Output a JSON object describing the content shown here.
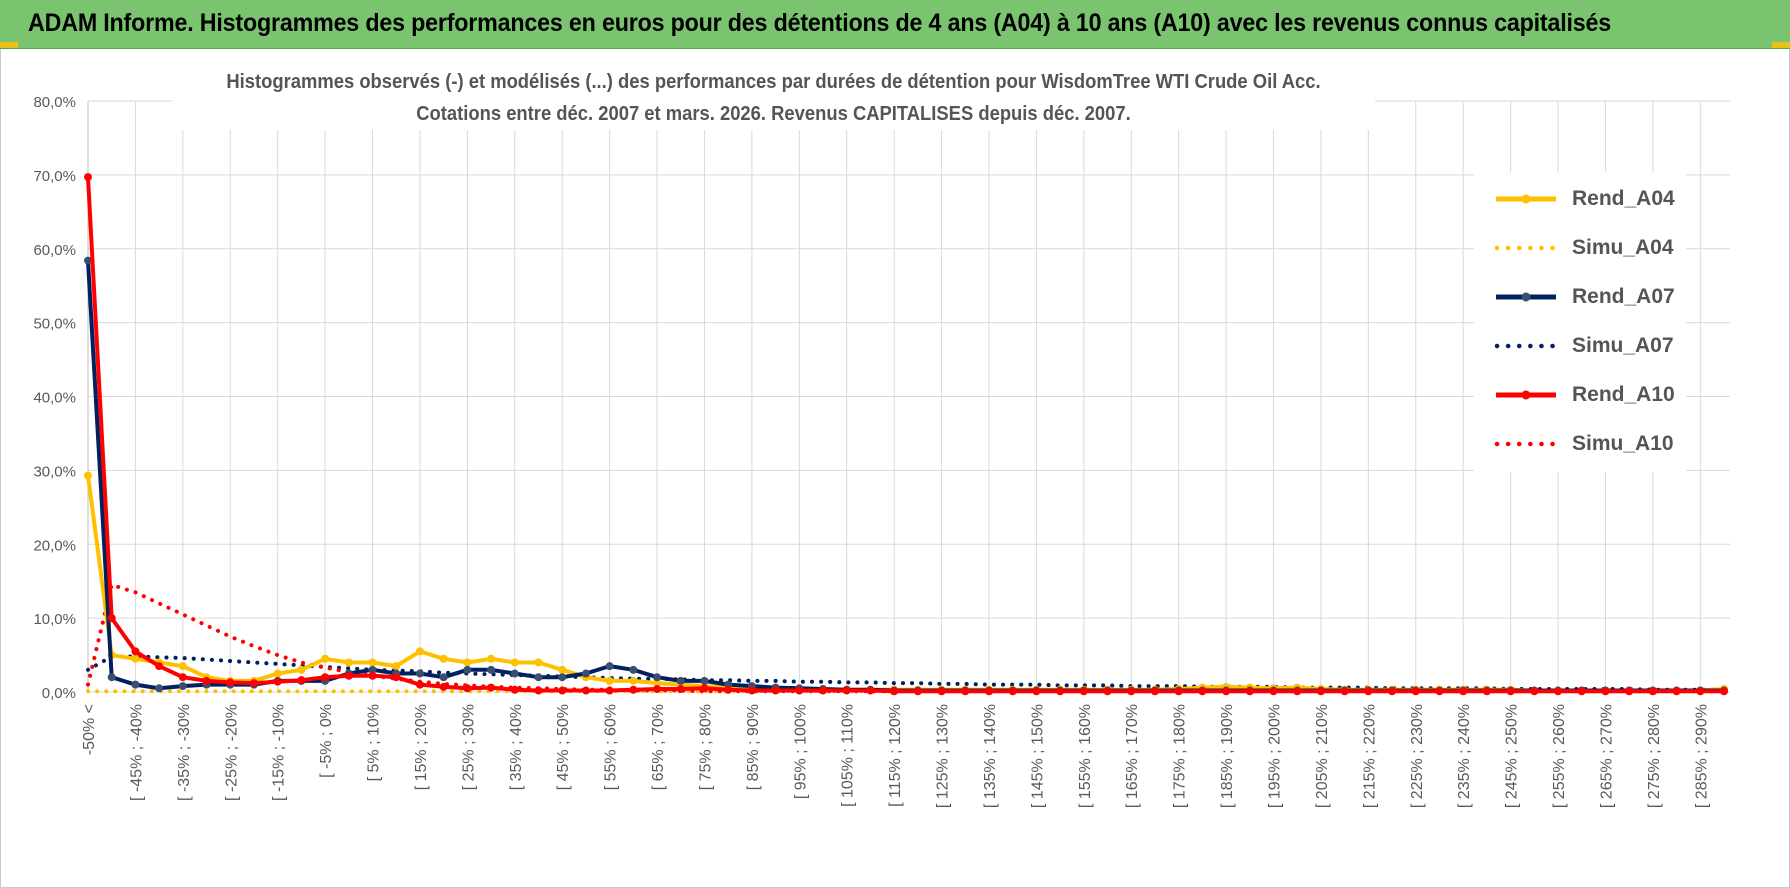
{
  "banner": {
    "title": "ADAM Informe. Histogrammes des performances en euros pour des détentions de 4 ans (A04) à 10 ans (A10) avec les revenus connus capitalisés"
  },
  "colors": {
    "banner_bg": "#7ac46f",
    "A04": "#ffc000",
    "A07": "#002060",
    "A10": "#ff0000",
    "grid": "#d9d9d9",
    "text": "#555555"
  },
  "chart_data": {
    "type": "line",
    "title_line1": "Histogrammes observés (-) et modélisés (...) des performances par durées de détention pour WisdomTree WTI Crude Oil Acc.",
    "title_line2": "Cotations entre déc. 2007 et mars. 2026. Revenus CAPITALISES depuis déc. 2007.",
    "y_tick_labels": [
      "0,0%",
      "10,0%",
      "20,0%",
      "30,0%",
      "40,0%",
      "50,0%",
      "60,0%",
      "70,0%",
      "80,0%"
    ],
    "ylim": [
      0,
      80
    ],
    "x_tick_labels": [
      "-50% <",
      "[ -45% ; -40%",
      "[ -35% ; -30%",
      "[ -25% ; -20%",
      "[ -15% ; -10%",
      "[ -5% ; 0%",
      "[ 5% ; 10%",
      "[ 15% ; 20%",
      "[ 25% ; 30%",
      "[ 35% ; 40%",
      "[ 45% ; 50%",
      "[ 55% ; 60%",
      "[ 65% ; 70%",
      "[ 75% ; 80%",
      "[ 85% ; 90%",
      "[ 95% ; 100%",
      "[ 105% ; 110%",
      "[ 115% ; 120%",
      "[ 125% ; 130%",
      "[ 135% ; 140%",
      "[ 145% ; 150%",
      "[ 155% ; 160%",
      "[ 165% ; 170%",
      "[ 175% ; 180%",
      "[ 185% ; 190%",
      "[ 195% ; 200%",
      "[ 205% ; 210%",
      "[ 215% ; 220%",
      "[ 225% ; 230%",
      "[ 235% ; 240%",
      "[ 245% ; 250%",
      "[ 255% ; 260%",
      "[ 265% ; 270%",
      "[ 275% ; 280%",
      "[ 285% ; 290%"
    ],
    "n_categories": 70,
    "legend_position": "right",
    "grid": true,
    "series": [
      {
        "name": "Rend_A04",
        "style": "solid",
        "color": "#ffc000",
        "values": [
          29.3,
          5.0,
          4.5,
          4.0,
          3.5,
          2.0,
          1.5,
          1.5,
          2.5,
          3.0,
          4.5,
          4.0,
          4.0,
          3.5,
          5.5,
          4.5,
          4.0,
          4.5,
          4.0,
          4.0,
          3.0,
          2.0,
          1.5,
          1.5,
          1.2,
          1.0,
          0.8,
          0.6,
          0.5,
          0.4,
          0.3,
          0.3,
          0.3,
          0.3,
          0.3,
          0.3,
          0.3,
          0.3,
          0.3,
          0.3,
          0.3,
          0.3,
          0.3,
          0.3,
          0.3,
          0.3,
          0.4,
          0.6,
          0.7,
          0.6,
          0.5,
          0.6,
          0.4,
          0.3,
          0.3,
          0.3,
          0.3,
          0.3,
          0.3,
          0.3,
          0.3,
          0.2,
          0.2,
          0.2,
          0.2,
          0.2,
          0.2,
          0.2,
          0.2,
          0.4
        ]
      },
      {
        "name": "Simu_A04",
        "style": "dotted",
        "color": "#ffc000",
        "values": [
          0.1,
          0.1,
          0.1,
          0.1,
          0.1,
          0.1,
          0.1,
          0.1,
          0.1,
          0.1,
          0.1,
          0.1,
          0.1,
          0.1,
          0.1,
          0.1,
          0.1,
          0.1,
          0.1,
          0.1,
          0.1,
          0.1,
          0.1,
          0.1,
          0.1,
          0.1,
          0.1,
          0.1,
          0.1,
          0.1,
          0.1,
          0.1,
          0.1,
          0.1,
          0.1,
          0.1,
          0.1,
          0.1,
          0.1,
          0.1,
          0.1,
          0.1,
          0.1,
          0.1,
          0.1,
          0.1,
          0.1,
          0.1,
          0.1,
          0.1,
          0.1,
          0.1,
          0.1,
          0.1,
          0.1,
          0.1,
          0.1,
          0.1,
          0.1,
          0.1,
          0.1,
          0.1,
          0.1,
          0.1,
          0.1,
          0.1,
          0.1,
          0.1,
          0.1,
          0.1
        ]
      },
      {
        "name": "Rend_A07",
        "style": "solid",
        "color": "#002060",
        "values": [
          58.4,
          2.0,
          1.0,
          0.5,
          0.8,
          1.0,
          1.0,
          1.0,
          1.5,
          1.5,
          1.5,
          2.5,
          3.0,
          2.5,
          2.5,
          2.0,
          3.0,
          3.0,
          2.5,
          2.0,
          2.0,
          2.5,
          3.5,
          3.0,
          2.0,
          1.5,
          1.5,
          1.0,
          0.8,
          0.6,
          0.5,
          0.4,
          0.3,
          0.3,
          0.2,
          0.2,
          0.2,
          0.2,
          0.2,
          0.2,
          0.2,
          0.2,
          0.2,
          0.2,
          0.2,
          0.2,
          0.2,
          0.2,
          0.2,
          0.2,
          0.2,
          0.2,
          0.2,
          0.2,
          0.2,
          0.2,
          0.2,
          0.2,
          0.2,
          0.2,
          0.2,
          0.2,
          0.2,
          0.2,
          0.2,
          0.2,
          0.2,
          0.2,
          0.2,
          0.2
        ]
      },
      {
        "name": "Simu_A07",
        "style": "dotted",
        "color": "#002060",
        "values": [
          3.0,
          4.8,
          4.8,
          4.7,
          4.6,
          4.4,
          4.2,
          4.0,
          3.8,
          3.6,
          3.4,
          3.2,
          3.0,
          2.9,
          2.8,
          2.6,
          2.5,
          2.4,
          2.3,
          2.2,
          2.1,
          2.0,
          1.9,
          1.8,
          1.8,
          1.7,
          1.6,
          1.6,
          1.5,
          1.5,
          1.4,
          1.4,
          1.3,
          1.3,
          1.2,
          1.2,
          1.1,
          1.1,
          1.0,
          1.0,
          1.0,
          0.9,
          0.9,
          0.9,
          0.8,
          0.8,
          0.8,
          0.7,
          0.7,
          0.7,
          0.7,
          0.6,
          0.6,
          0.6,
          0.6,
          0.5,
          0.5,
          0.5,
          0.5,
          0.5,
          0.4,
          0.4,
          0.4,
          0.4,
          0.4,
          0.4,
          0.3,
          0.3,
          0.3,
          0.3
        ]
      },
      {
        "name": "Rend_A10",
        "style": "solid",
        "color": "#ff0000",
        "values": [
          69.7,
          10.0,
          5.5,
          3.5,
          2.0,
          1.5,
          1.3,
          1.2,
          1.4,
          1.6,
          2.0,
          2.2,
          2.2,
          2.0,
          1.0,
          0.7,
          0.5,
          0.6,
          0.3,
          0.2,
          0.2,
          0.2,
          0.2,
          0.3,
          0.4,
          0.4,
          0.5,
          0.3,
          0.2,
          0.2,
          0.2,
          0.2,
          0.2,
          0.2,
          0.1,
          0.1,
          0.1,
          0.1,
          0.1,
          0.1,
          0.1,
          0.1,
          0.1,
          0.1,
          0.1,
          0.1,
          0.1,
          0.1,
          0.1,
          0.1,
          0.1,
          0.1,
          0.1,
          0.1,
          0.1,
          0.1,
          0.1,
          0.1,
          0.1,
          0.1,
          0.1,
          0.1,
          0.1,
          0.1,
          0.1,
          0.1,
          0.1,
          0.1,
          0.1,
          0.1
        ]
      },
      {
        "name": "Simu_A10",
        "style": "dotted",
        "color": "#ff0000",
        "values": [
          1.0,
          14.5,
          13.5,
          12.0,
          10.5,
          9.0,
          7.5,
          6.2,
          5.0,
          4.0,
          3.3,
          2.7,
          2.2,
          1.8,
          1.4,
          1.1,
          0.9,
          0.7,
          0.6,
          0.5,
          0.4,
          0.3,
          0.3,
          0.2,
          0.2,
          0.2,
          0.1,
          0.1,
          0.1,
          0.1,
          0.1,
          0.1,
          0.1,
          0.1,
          0.1,
          0.1,
          0.1,
          0.1,
          0.1,
          0.1,
          0.1,
          0.1,
          0.1,
          0.1,
          0.1,
          0.1,
          0.1,
          0.1,
          0.1,
          0.1,
          0.1,
          0.1,
          0.1,
          0.1,
          0.1,
          0.1,
          0.1,
          0.1,
          0.1,
          0.1,
          0.1,
          0.1,
          0.1,
          0.1,
          0.1,
          0.1,
          0.1,
          0.1,
          0.1,
          0.1
        ]
      }
    ]
  }
}
